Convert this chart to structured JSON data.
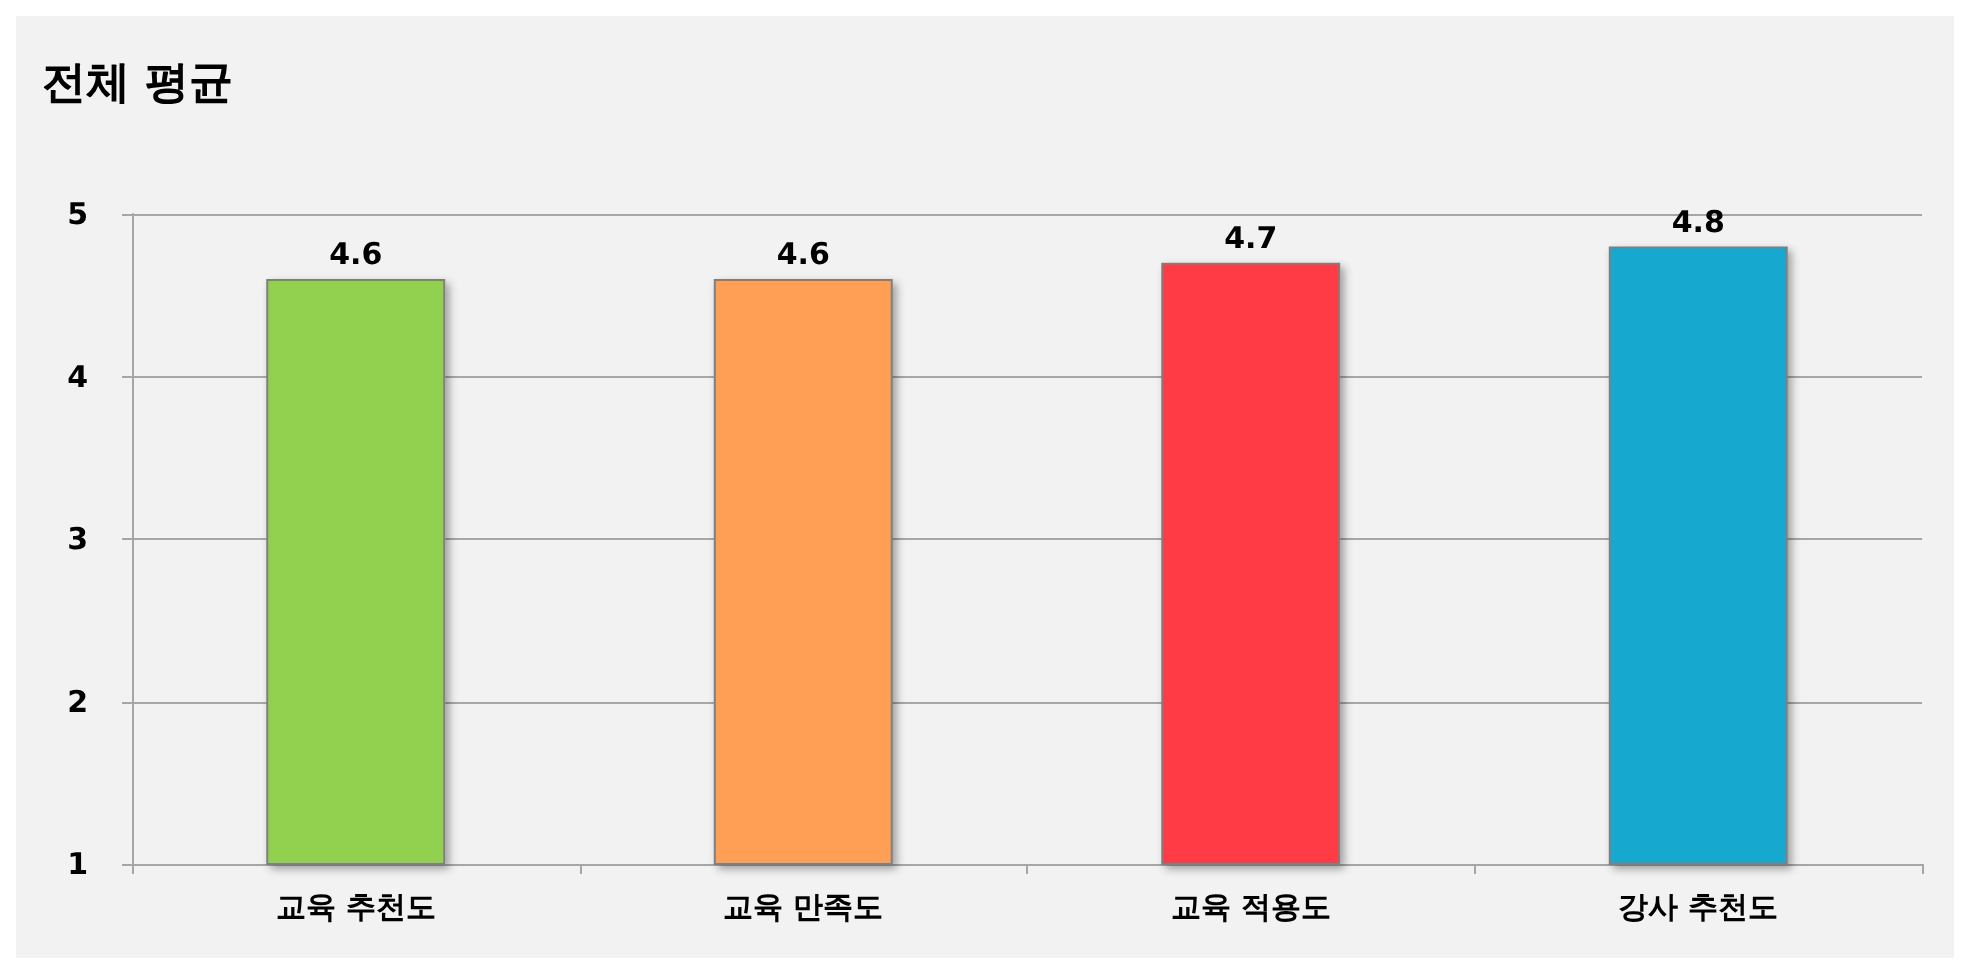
{
  "chart_data": {
    "type": "bar",
    "title": "전체 평균",
    "categories": [
      "교육 추천도",
      "교육 만족도",
      "교육 적용도",
      "강사 추천도"
    ],
    "values": [
      4.6,
      4.6,
      4.7,
      4.8
    ],
    "colors": [
      "#92d050",
      "#ff9e55",
      "#ff3b45",
      "#17a8cf"
    ],
    "ylim": [
      1,
      5
    ],
    "yticks": [
      1,
      2,
      3,
      4,
      5
    ],
    "grid": "y",
    "data_labels": true
  }
}
